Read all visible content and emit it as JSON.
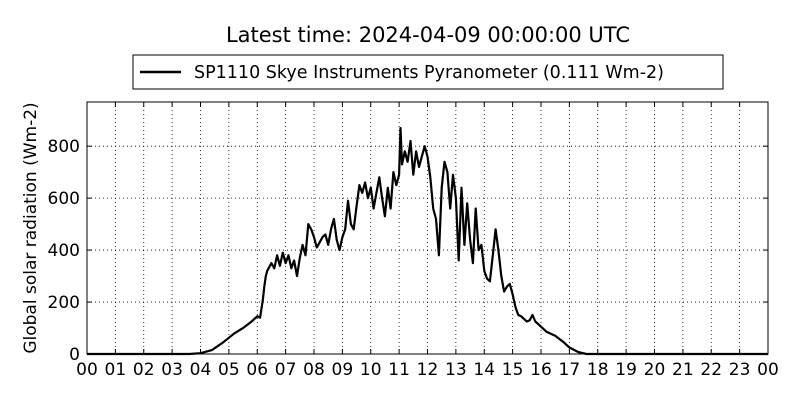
{
  "chart_data": {
    "type": "line",
    "title": "Latest time: 2024-04-09 00:00:00 UTC",
    "xlabel": "",
    "ylabel": "Global solar radiation (Wm-2)",
    "xlim": [
      0,
      24
    ],
    "ylim": [
      0,
      970
    ],
    "grid": true,
    "legend_position": "top-center",
    "x_tick_labels": [
      "00",
      "01",
      "02",
      "03",
      "04",
      "05",
      "06",
      "07",
      "08",
      "09",
      "10",
      "11",
      "12",
      "13",
      "14",
      "15",
      "16",
      "17",
      "18",
      "19",
      "20",
      "21",
      "22",
      "23",
      "00"
    ],
    "y_tick_labels": [
      "0",
      "200",
      "400",
      "600",
      "800"
    ],
    "y_ticks": [
      0,
      200,
      400,
      600,
      800
    ],
    "series": [
      {
        "name": "SP1110 Skye Instruments Pyranometer (0.111 Wm-2)",
        "color": "#000000",
        "x": [
          0,
          3.6,
          4.0,
          4.4,
          4.8,
          5.2,
          5.5,
          5.8,
          6.0,
          6.1,
          6.2,
          6.25,
          6.3,
          6.35,
          6.5,
          6.6,
          6.7,
          6.8,
          6.9,
          7.0,
          7.1,
          7.2,
          7.3,
          7.4,
          7.5,
          7.6,
          7.7,
          7.8,
          7.9,
          8.0,
          8.1,
          8.2,
          8.3,
          8.4,
          8.5,
          8.6,
          8.7,
          8.8,
          8.9,
          9.0,
          9.1,
          9.2,
          9.3,
          9.4,
          9.5,
          9.6,
          9.7,
          9.8,
          9.9,
          10.0,
          10.1,
          10.2,
          10.3,
          10.4,
          10.5,
          10.6,
          10.7,
          10.8,
          10.9,
          11.0,
          11.05,
          11.1,
          11.2,
          11.3,
          11.4,
          11.5,
          11.6,
          11.7,
          11.8,
          11.9,
          12.0,
          12.1,
          12.2,
          12.3,
          12.4,
          12.5,
          12.6,
          12.7,
          12.8,
          12.9,
          13.0,
          13.1,
          13.2,
          13.3,
          13.4,
          13.5,
          13.6,
          13.7,
          13.8,
          13.9,
          14.0,
          14.1,
          14.2,
          14.3,
          14.4,
          14.5,
          14.6,
          14.7,
          14.8,
          14.9,
          15.0,
          15.1,
          15.2,
          15.3,
          15.4,
          15.5,
          15.6,
          15.7,
          15.8,
          15.9,
          16.0,
          16.2,
          16.5,
          16.8,
          17.0,
          17.3,
          17.6,
          17.9,
          18.2,
          24.0
        ],
        "y": [
          0,
          0,
          3,
          15,
          45,
          80,
          100,
          125,
          145,
          140,
          210,
          260,
          300,
          320,
          350,
          330,
          380,
          340,
          390,
          350,
          380,
          330,
          360,
          300,
          370,
          420,
          380,
          500,
          480,
          450,
          410,
          430,
          450,
          460,
          420,
          480,
          520,
          440,
          400,
          450,
          480,
          590,
          500,
          480,
          570,
          650,
          620,
          660,
          600,
          640,
          560,
          620,
          680,
          600,
          530,
          640,
          560,
          700,
          650,
          690,
          870,
          730,
          780,
          740,
          820,
          690,
          780,
          720,
          760,
          800,
          760,
          680,
          560,
          520,
          380,
          640,
          740,
          700,
          560,
          690,
          600,
          360,
          640,
          420,
          580,
          440,
          350,
          560,
          400,
          420,
          320,
          290,
          280,
          380,
          480,
          400,
          300,
          240,
          260,
          270,
          230,
          180,
          150,
          145,
          135,
          125,
          130,
          150,
          125,
          115,
          105,
          85,
          70,
          45,
          25,
          8,
          0,
          0,
          0,
          0
        ]
      }
    ]
  }
}
